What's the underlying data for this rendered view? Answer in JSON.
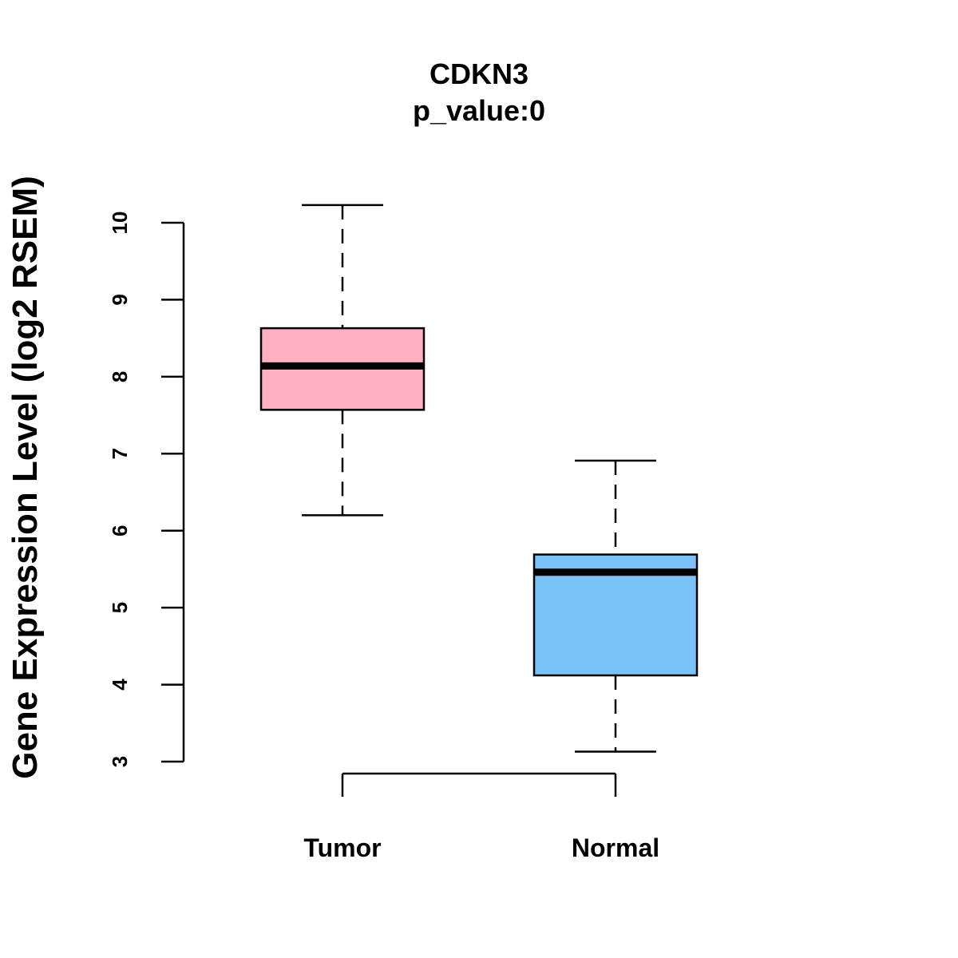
{
  "chart_data": {
    "type": "boxplot",
    "title": "CDKN3",
    "subtitle": "p_value:0",
    "xlabel": "",
    "ylabel": "Gene Expression Level (log2 RSEM)",
    "ylim": [
      3,
      10
    ],
    "yticks": [
      "3",
      "4",
      "5",
      "6",
      "7",
      "8",
      "9",
      "10"
    ],
    "categories": [
      "Tumor",
      "Normal"
    ],
    "series": [
      {
        "name": "Tumor",
        "color": "#FFB0C3",
        "whisker_low": 6.2,
        "q1": 7.57,
        "median": 8.14,
        "q3": 8.63,
        "whisker_high": 10.23
      },
      {
        "name": "Normal",
        "color": "#78C2F8",
        "whisker_low": 3.13,
        "q1": 4.12,
        "median": 5.46,
        "q3": 5.69,
        "whisker_high": 6.91
      }
    ],
    "grid": false,
    "legend": "none"
  }
}
